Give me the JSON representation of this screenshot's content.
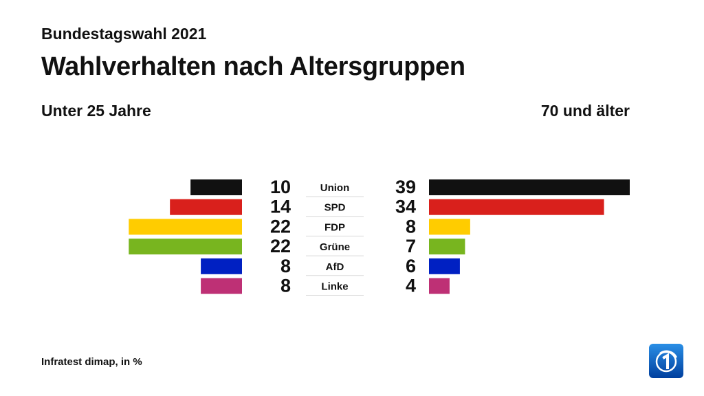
{
  "header": {
    "supertitle": "Bundestagswahl 2021",
    "title": "Wahlverhalten nach Altersgruppen"
  },
  "footer": {
    "source": "Infratest dimap, in %"
  },
  "chart_data": {
    "type": "bar",
    "layout": "butterfly",
    "categories": [
      "Union",
      "SPD",
      "FDP",
      "Grüne",
      "AfD",
      "Linke"
    ],
    "series": [
      {
        "name": "Unter 25 Jahre",
        "values": [
          10,
          14,
          22,
          22,
          8,
          8
        ]
      },
      {
        "name": "70 und älter",
        "values": [
          39,
          34,
          8,
          7,
          6,
          4
        ]
      }
    ],
    "colors": [
      "#111111",
      "#d9201c",
      "#ffcc00",
      "#78b51f",
      "#0020c2",
      "#be3075"
    ],
    "xlim": [
      0,
      39
    ],
    "grid": false,
    "legend": "none"
  },
  "logo": {
    "icon": "ard-one-logo-icon"
  }
}
